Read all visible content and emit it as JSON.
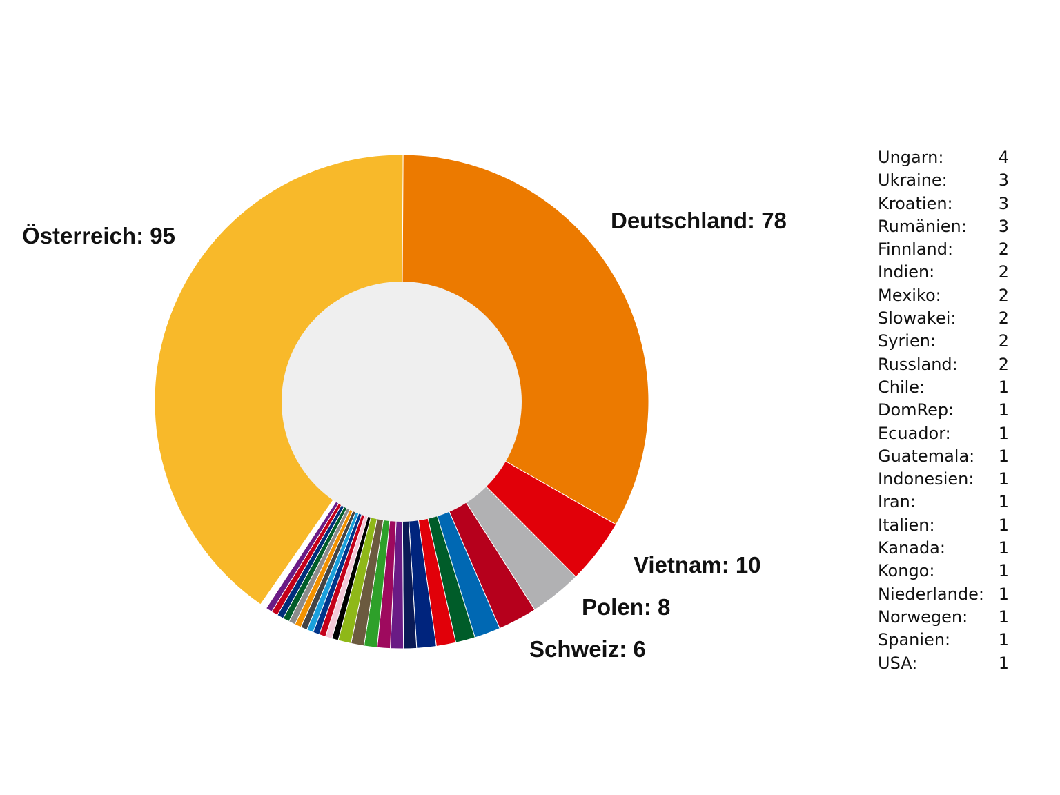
{
  "chart_data": {
    "type": "pie",
    "variant": "donut",
    "center_color": "#efefef",
    "slices": [
      {
        "label": "Österreich",
        "value": 95,
        "color": "#f8b92a",
        "label_text": "Österreich: 95"
      },
      {
        "label": "Deutschland",
        "value": 78,
        "color": "#ec7a00",
        "label_text": "Deutschland: 78"
      },
      {
        "label": "Vietnam",
        "value": 10,
        "color": "#e10009",
        "label_text": "Vietnam: 10"
      },
      {
        "label": "Polen",
        "value": 8,
        "color": "#b1b1b3",
        "label_text": "Polen: 8"
      },
      {
        "label": "Schweiz",
        "value": 6,
        "color": "#b6001c",
        "label_text": "Schweiz: 6"
      },
      {
        "label": "Ungarn",
        "value": 4,
        "color": "#0068b3"
      },
      {
        "label": "Ukraine",
        "value": 3,
        "color": "#005c29"
      },
      {
        "label": "Kroatien",
        "value": 3,
        "color": "#e10009"
      },
      {
        "label": "Rumänien",
        "value": 3,
        "color": "#00247d"
      },
      {
        "label": "Finnland",
        "value": 2,
        "color": "#0a1a55"
      },
      {
        "label": "Indien",
        "value": 2,
        "color": "#6a1b85"
      },
      {
        "label": "Mexiko",
        "value": 2,
        "color": "#9e0a5e"
      },
      {
        "label": "Slowakei",
        "value": 2,
        "color": "#2ea02a"
      },
      {
        "label": "Syrien",
        "value": 2,
        "color": "#6b5a3f"
      },
      {
        "label": "Russland",
        "value": 2,
        "color": "#8fb818"
      },
      {
        "label": "Chile",
        "value": 1,
        "color": "#000000"
      },
      {
        "label": "DomRep",
        "value": 1,
        "color": "#f2c8d8"
      },
      {
        "label": "Ecuador",
        "value": 1,
        "color": "#c4001a"
      },
      {
        "label": "Guatemala",
        "value": 1,
        "color": "#00358a"
      },
      {
        "label": "Indonesien",
        "value": 1,
        "color": "#1aa0dc"
      },
      {
        "label": "Iran",
        "value": 1,
        "color": "#444444"
      },
      {
        "label": "Italien",
        "value": 1,
        "color": "#f39200"
      },
      {
        "label": "Kanada",
        "value": 1,
        "color": "#8c8c8c"
      },
      {
        "label": "Kongo",
        "value": 1,
        "color": "#005c29"
      },
      {
        "label": "Niederlande",
        "value": 1,
        "color": "#002e7a"
      },
      {
        "label": "Norwegen",
        "value": 1,
        "color": "#c4001a"
      },
      {
        "label": "Spanien",
        "value": 1,
        "color": "#6a1b85"
      },
      {
        "label": "USA",
        "value": 1,
        "color": "#ffffff"
      }
    ],
    "legend": [
      {
        "label": "Ungarn:",
        "value": "4"
      },
      {
        "label": "Ukraine:",
        "value": "3"
      },
      {
        "label": "Kroatien:",
        "value": "3"
      },
      {
        "label": "Rumänien:",
        "value": "3"
      },
      {
        "label": "Finnland:",
        "value": "2"
      },
      {
        "label": "Indien:",
        "value": "2"
      },
      {
        "label": "Mexiko:",
        "value": "2"
      },
      {
        "label": "Slowakei:",
        "value": "2"
      },
      {
        "label": "Syrien:",
        "value": "2"
      },
      {
        "label": "Russland:",
        "value": "2"
      },
      {
        "label": "Chile:",
        "value": "1"
      },
      {
        "label": "DomRep:",
        "value": "1"
      },
      {
        "label": "Ecuador:",
        "value": "1"
      },
      {
        "label": "Guatemala:",
        "value": "1"
      },
      {
        "label": "Indonesien:",
        "value": "1"
      },
      {
        "label": "Iran:",
        "value": "1"
      },
      {
        "label": "Italien:",
        "value": "1"
      },
      {
        "label": "Kanada:",
        "value": "1"
      },
      {
        "label": "Kongo:",
        "value": "1"
      },
      {
        "label": "Niederlande:",
        "value": "1"
      },
      {
        "label": "Norwegen:",
        "value": "1"
      },
      {
        "label": "Spanien:",
        "value": "1"
      },
      {
        "label": "USA:",
        "value": "1"
      }
    ],
    "legend_placement": "right"
  }
}
